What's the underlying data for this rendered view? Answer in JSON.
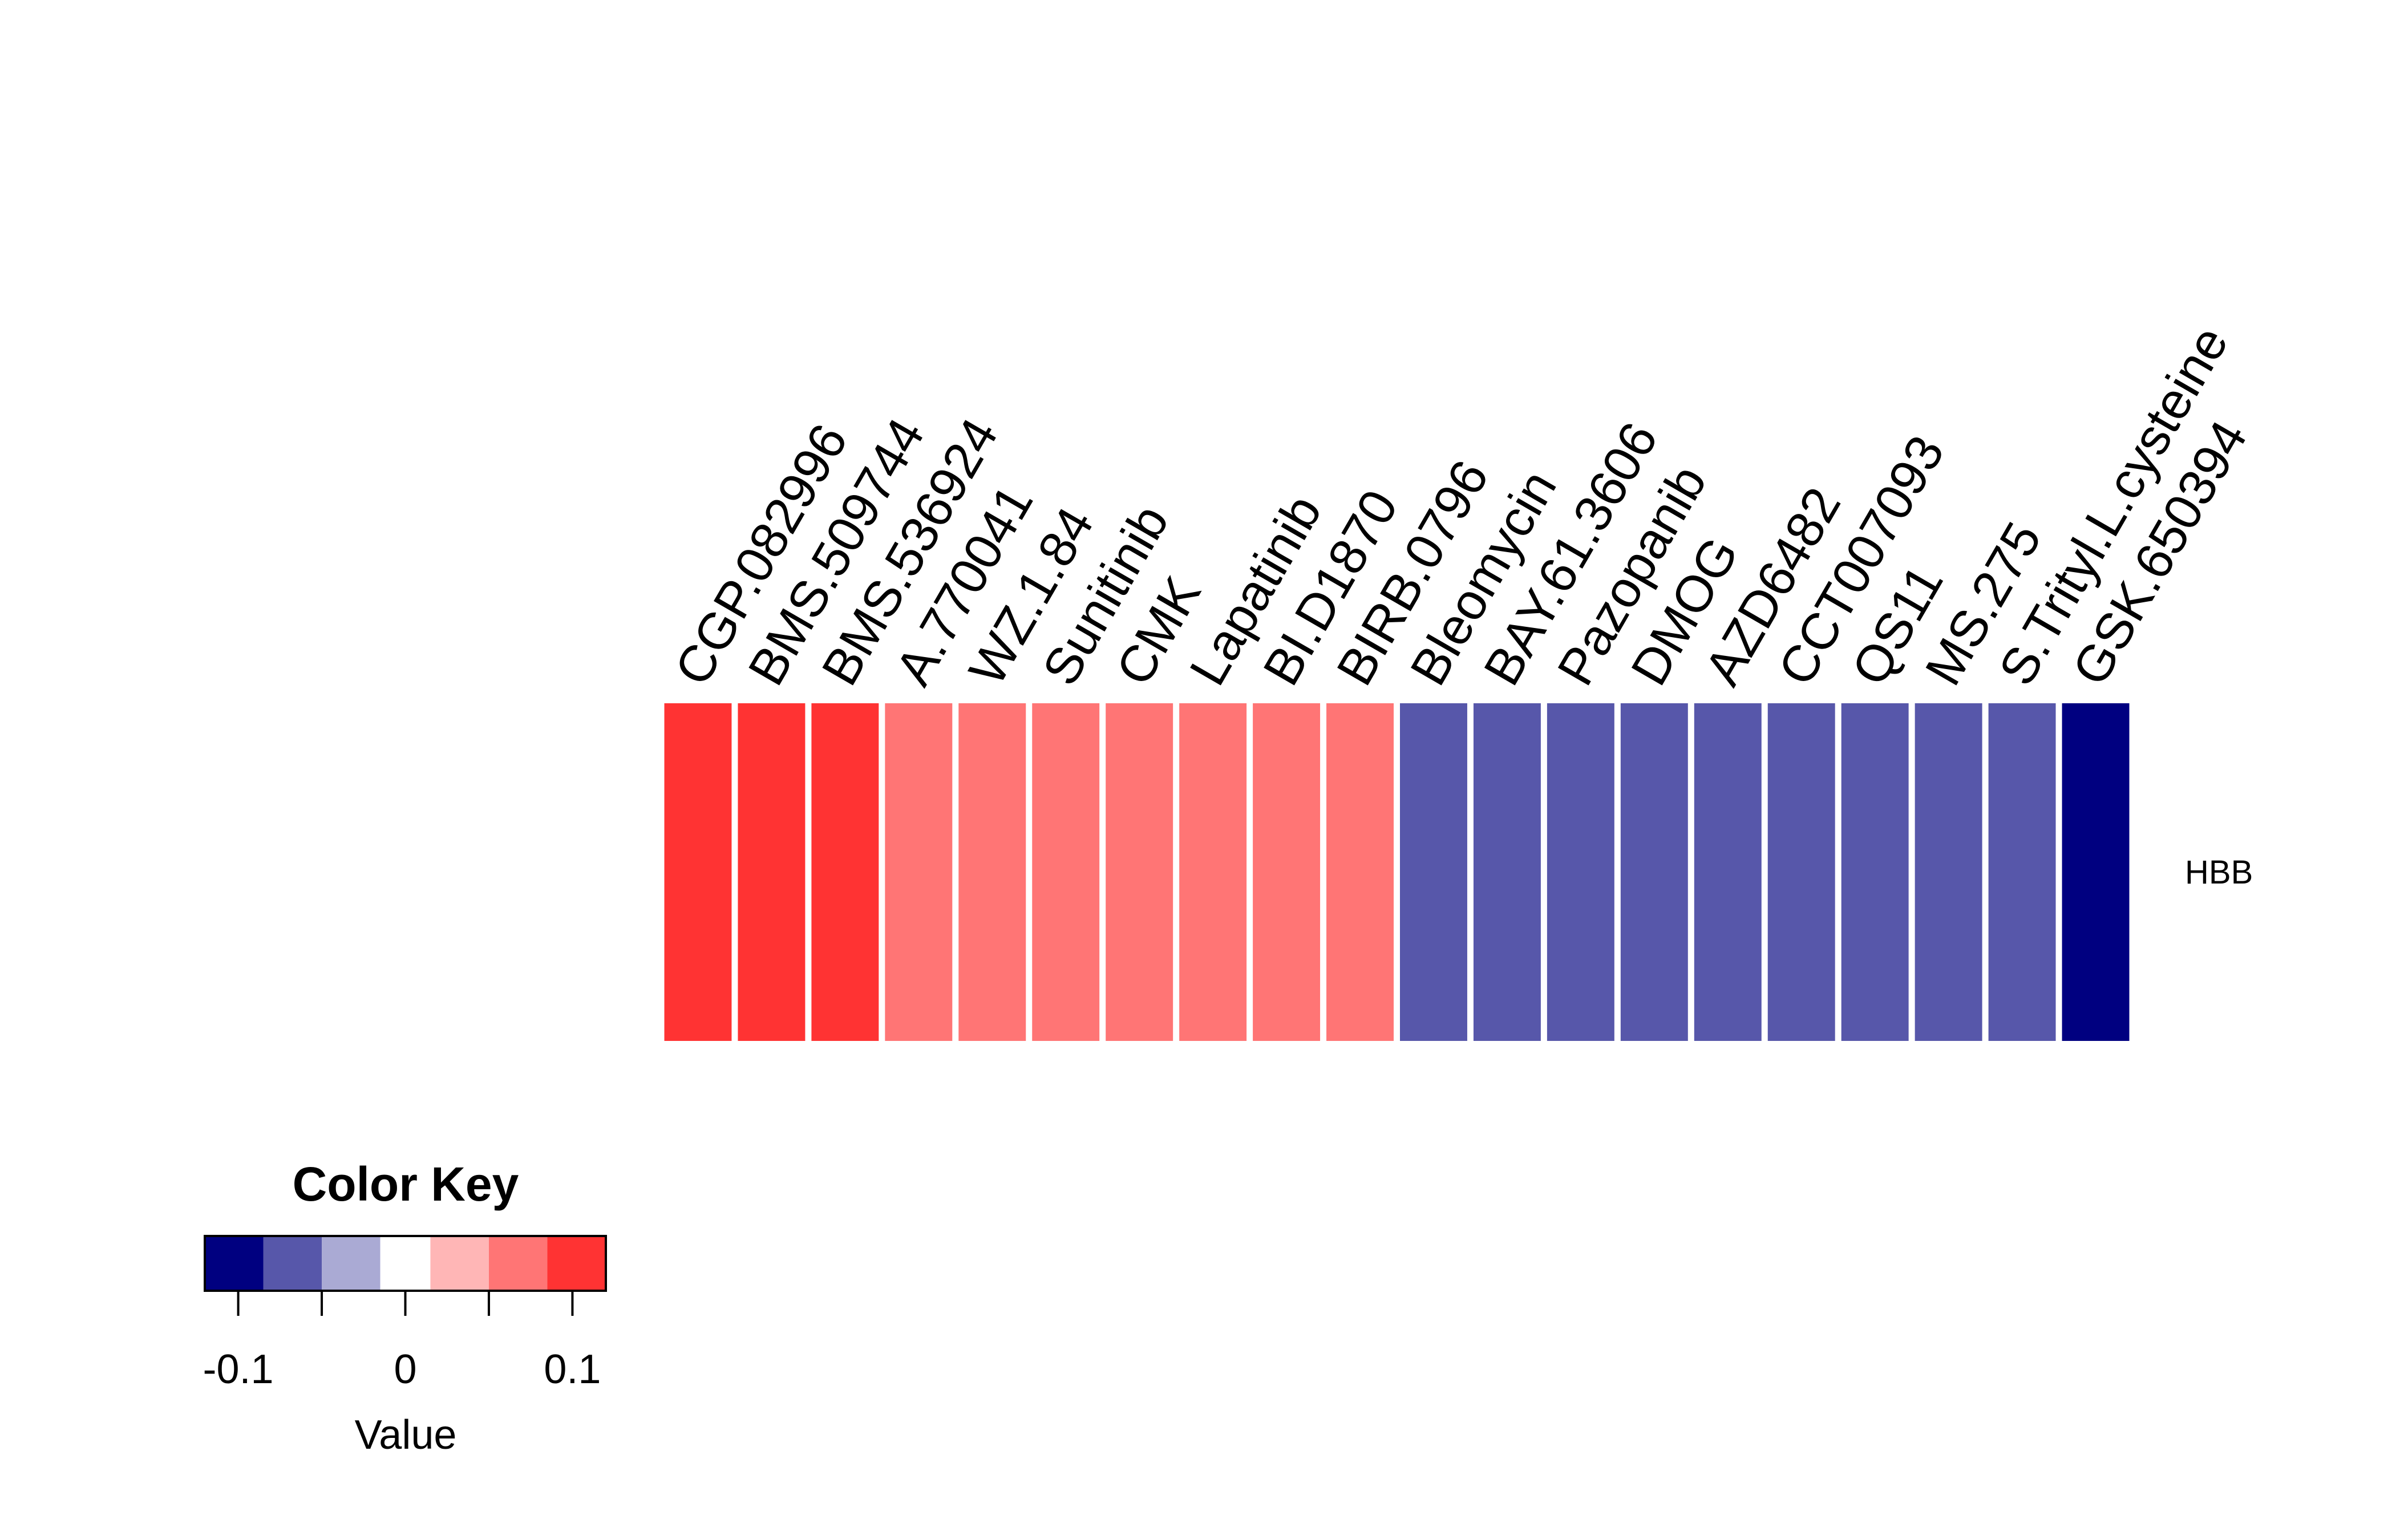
{
  "chart_data": {
    "type": "heatmap",
    "rows": [
      "HBB"
    ],
    "columns": [
      "CGP.082996",
      "BMS.509744",
      "BMS.536924",
      "A.770041",
      "WZ.1.84",
      "Sunitinib",
      "CMK",
      "Lapatinib",
      "BI.D1870",
      "BIRB.0796",
      "Bleomycin",
      "BAY.61.3606",
      "Pazopanib",
      "DMOG",
      "AZD6482",
      "CCT007093",
      "QS11",
      "MS.275",
      "S.Trityl.L.cysteine",
      "GSK.650394"
    ],
    "values": [
      [
        0.1,
        0.1,
        0.1,
        0.075,
        0.075,
        0.075,
        0.075,
        0.075,
        0.075,
        0.075,
        -0.075,
        -0.075,
        -0.075,
        -0.075,
        -0.075,
        -0.075,
        -0.075,
        -0.075,
        -0.075,
        -0.1
      ]
    ],
    "color_key": {
      "title": "Color Key",
      "xlabel": "Value",
      "breaks": [
        -0.12,
        -0.085,
        -0.05,
        -0.015,
        0.015,
        0.05,
        0.085,
        0.12
      ],
      "colors": [
        "#000080",
        "#5757AA",
        "#AAAAD4",
        "#FFFFFF",
        "#FFB6B6",
        "#FF7575",
        "#FF3333"
      ],
      "ticks": [
        -0.1,
        -0.05,
        0,
        0.05,
        0.1
      ],
      "tick_labels": [
        "-0.1",
        "",
        "0",
        "",
        "0.1"
      ]
    }
  }
}
